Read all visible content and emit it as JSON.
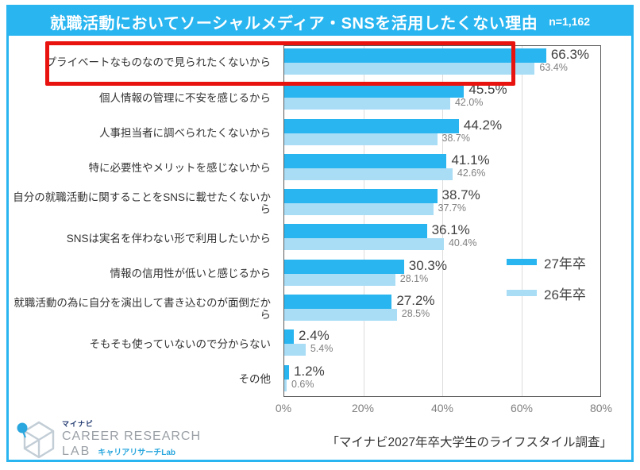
{
  "header": {
    "title": "就職活動においてソーシャルメディア・SNSを活用したくない理由",
    "sample": "n=1,162"
  },
  "chart_data": {
    "type": "bar",
    "orientation": "horizontal",
    "title": "就職活動においてソーシャルメディア・SNSを活用したくない理由",
    "sample_size": "n=1,162",
    "categories": [
      "プライベートなものなので見られたくないから",
      "個人情報の管理に不安を感じるから",
      "人事担当者に調べられたくないから",
      "特に必要性やメリットを感じないから",
      "自分の就職活動に関することをSNSに載せたくないから",
      "SNSは実名を伴わない形で利用したいから",
      "情報の信用性が低いと感じるから",
      "就職活動の為に自分を演出して書き込むのが面倒だから",
      "そもそも使っていないので分からない",
      "その他"
    ],
    "series": [
      {
        "name": "27年卒",
        "color": "#29B5F0",
        "values": [
          66.3,
          45.5,
          44.2,
          41.1,
          38.7,
          36.1,
          30.3,
          27.2,
          2.4,
          1.2
        ]
      },
      {
        "name": "26年卒",
        "color": "#A9DDF6",
        "values": [
          63.4,
          42.0,
          38.7,
          42.6,
          37.7,
          40.4,
          28.1,
          28.5,
          5.4,
          0.6
        ]
      }
    ],
    "xlim": [
      0,
      80
    ],
    "x_ticks": [
      "0%",
      "20%",
      "40%",
      "60%",
      "80%"
    ],
    "grid": true,
    "legend_position": "right-center",
    "highlighted_category_index": 0
  },
  "footer": {
    "source": "「マイナビ2027年卒大学生のライフスタイル調査」",
    "logo": {
      "brand": "マイナビ",
      "line1": "CAREER RESEARCH",
      "line2": "LAB",
      "line2_sub": "キャリアリサーチLab"
    }
  },
  "colors": {
    "primary_blue": "#29B5F0",
    "light_blue": "#A9DDF6",
    "highlight_red": "#E8120F",
    "frame_blue": "#29B5F0"
  }
}
